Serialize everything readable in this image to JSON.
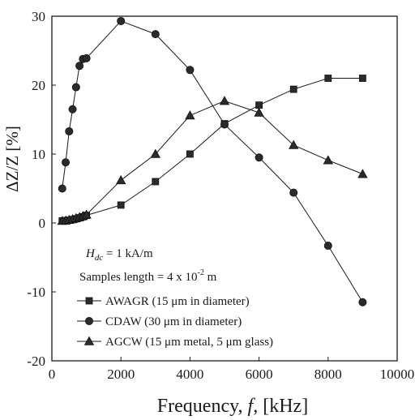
{
  "chart_data": {
    "type": "line",
    "xlabel": "Frequency, f, [kHz]",
    "ylabel": "ΔZ/Z [%]",
    "xlim": [
      0,
      10000
    ],
    "ylim": [
      -20,
      30
    ],
    "xticks": [
      "0",
      "2000",
      "4000",
      "6000",
      "8000",
      "10000"
    ],
    "yticks": [
      "-20",
      "-10",
      "0",
      "10",
      "20",
      "30"
    ],
    "annotations": {
      "hdc": "H",
      "hdc_sub": "dc",
      "hdc_rest": " = 1 kA/m",
      "samples_prefix": "Samples length = 4 x 10",
      "samples_exp": "-2",
      "samples_suffix": " m"
    },
    "series": [
      {
        "name": "AWAGR (15 μm in diameter)",
        "marker": "square",
        "x": [
          300,
          400,
          500,
          600,
          700,
          800,
          900,
          1000,
          2000,
          3000,
          4000,
          5000,
          6000,
          7000,
          8000,
          9000
        ],
        "y": [
          0.3,
          0.35,
          0.4,
          0.5,
          0.6,
          0.75,
          0.9,
          1.1,
          2.6,
          6.0,
          10.0,
          14.4,
          17.1,
          19.4,
          21.0,
          21.0
        ]
      },
      {
        "name": "CDAW (30 μm in diameter)",
        "marker": "circle",
        "x": [
          300,
          400,
          500,
          600,
          700,
          800,
          900,
          1000,
          2000,
          3000,
          4000,
          5000,
          6000,
          7000,
          8000,
          9000
        ],
        "y": [
          5.0,
          8.8,
          13.3,
          16.5,
          19.7,
          22.8,
          23.8,
          23.9,
          29.3,
          27.4,
          22.2,
          14.3,
          9.5,
          4.4,
          -3.3,
          -11.5
        ]
      },
      {
        "name": "AGCW (15 μm metal, 5 μm glass)",
        "marker": "triangle",
        "x": [
          300,
          400,
          500,
          600,
          700,
          800,
          900,
          1000,
          2000,
          3000,
          4000,
          5000,
          6000,
          7000,
          8000,
          9000
        ],
        "y": [
          0.3,
          0.35,
          0.45,
          0.55,
          0.7,
          0.85,
          1.0,
          1.2,
          6.2,
          10.0,
          15.6,
          17.7,
          16.0,
          11.3,
          9.1,
          7.1
        ]
      }
    ]
  }
}
